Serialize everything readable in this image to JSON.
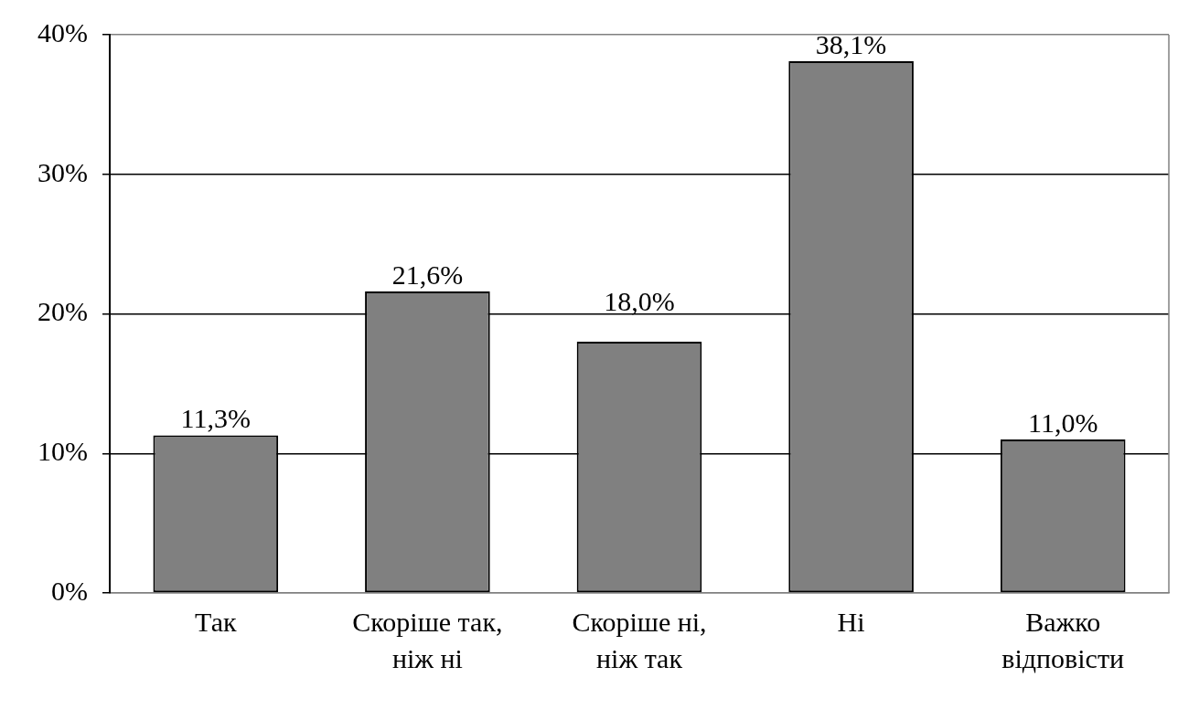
{
  "chart_data": {
    "type": "bar",
    "categories": [
      "Так",
      "Скоріше так, ніж ні",
      "Скоріше ні, ніж так",
      "Ні",
      "Важко відповісти"
    ],
    "values": [
      11.3,
      21.6,
      18.0,
      38.1,
      11.0
    ],
    "value_labels": [
      "11,3%",
      "21,6%",
      "18,0%",
      "38,1%",
      "11,0%"
    ],
    "color": "#808080",
    "ylim": [
      0,
      40
    ],
    "yticks": [
      {
        "value": 0,
        "label": "0%"
      },
      {
        "value": 10,
        "label": "10%"
      },
      {
        "value": 20,
        "label": "20%"
      },
      {
        "value": 30,
        "label": "30%"
      },
      {
        "value": 40,
        "label": "40%"
      }
    ],
    "grid": "y"
  }
}
